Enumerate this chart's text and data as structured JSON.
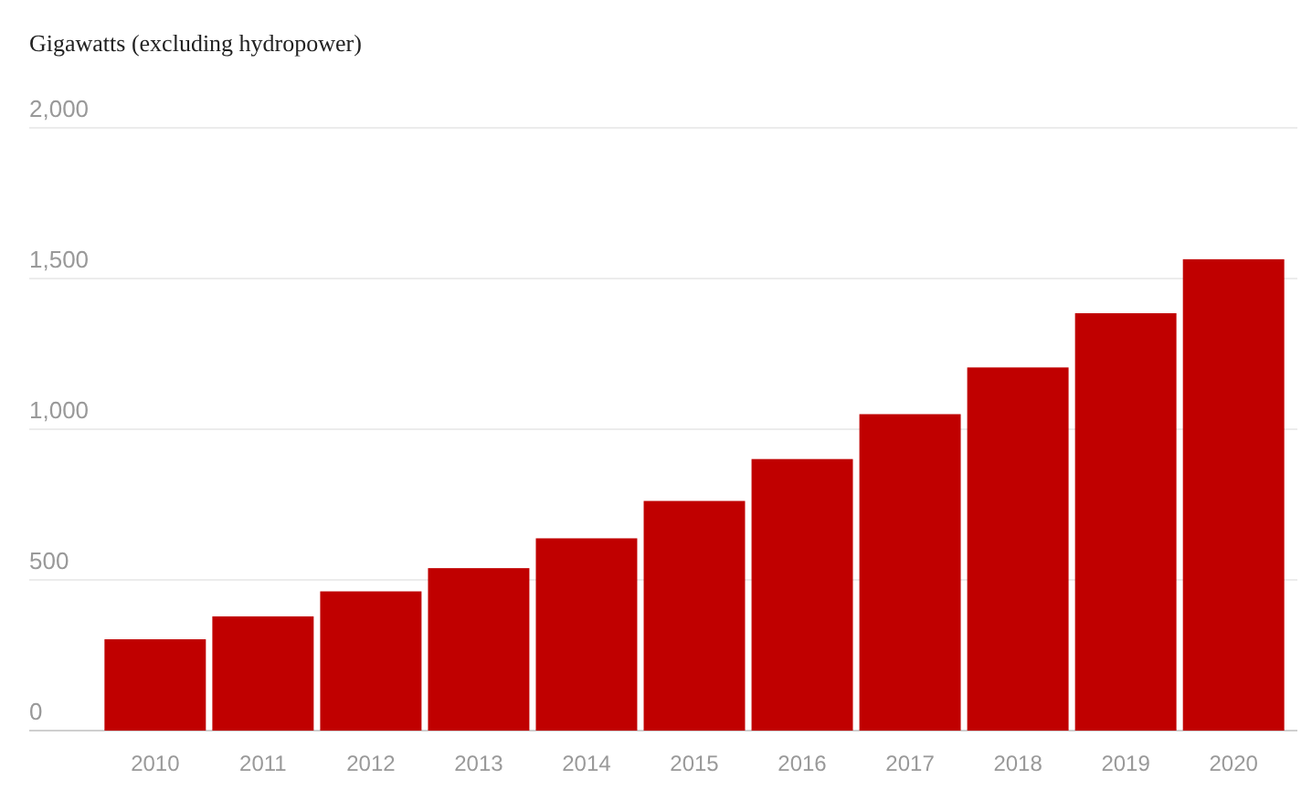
{
  "chart_data": {
    "type": "bar",
    "ylabel": "Gigawatts (excluding hydropower)",
    "categories": [
      "2010",
      "2011",
      "2012",
      "2013",
      "2014",
      "2015",
      "2016",
      "2017",
      "2018",
      "2019",
      "2020"
    ],
    "values": [
      303,
      379,
      462,
      539,
      638,
      762,
      901,
      1050,
      1205,
      1385,
      1564
    ],
    "color": "#c00000",
    "ylim": [
      0,
      2000
    ],
    "yticks": [
      {
        "value": 0,
        "label": "0"
      },
      {
        "value": 500,
        "label": "500"
      },
      {
        "value": 1000,
        "label": "1,000"
      },
      {
        "value": 1500,
        "label": "1,500"
      },
      {
        "value": 2000,
        "label": "2,000"
      }
    ],
    "grid": "y"
  }
}
